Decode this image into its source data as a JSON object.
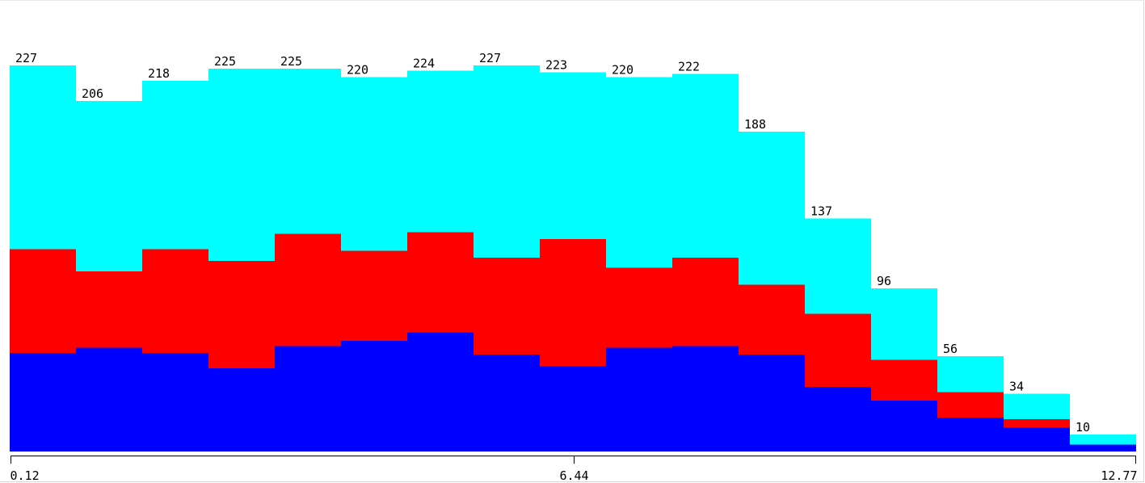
{
  "chart_data": {
    "type": "bar",
    "stacked": true,
    "histogram": true,
    "title": "",
    "xlabel": "",
    "ylabel": "",
    "x_range": [
      0.12,
      12.77
    ],
    "x_ticks": [
      "0.12",
      "6.44",
      "12.77"
    ],
    "bin_count": 17,
    "totals": [
      227,
      206,
      218,
      225,
      225,
      220,
      224,
      227,
      223,
      220,
      222,
      188,
      137,
      96,
      56,
      34,
      10
    ],
    "series": [
      {
        "color": "#0000ff",
        "values": [
          58,
          61,
          58,
          49,
          62,
          65,
          70,
          57,
          50,
          61,
          62,
          57,
          38,
          30,
          20,
          14,
          4
        ]
      },
      {
        "color": "#ff0000",
        "values": [
          61,
          45,
          61,
          63,
          66,
          53,
          59,
          57,
          75,
          47,
          52,
          41,
          43,
          24,
          15,
          5,
          0
        ]
      },
      {
        "color": "#00ffff",
        "values": [
          108,
          100,
          99,
          113,
          97,
          102,
          95,
          113,
          98,
          112,
          108,
          90,
          56,
          42,
          21,
          15,
          6
        ]
      }
    ],
    "ylim": [
      0,
      227
    ],
    "grid": false,
    "legend": "none"
  }
}
